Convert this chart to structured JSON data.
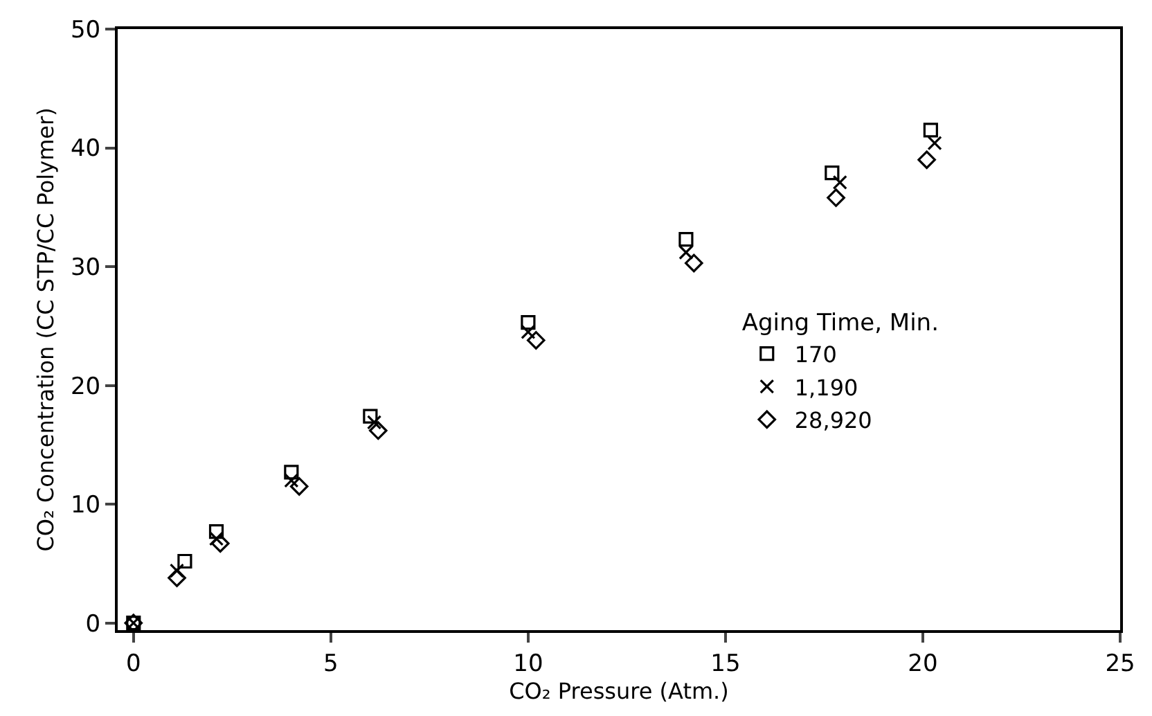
{
  "chart_data": {
    "type": "scatter",
    "xlabel": "CO₂ Pressure (Atm.)",
    "ylabel": "CO₂ Concentration (CC STP/CC Polymer)",
    "legend_title": "Aging Time, Min.",
    "legend": "right",
    "xlim": [
      -0.4,
      25
    ],
    "ylim": [
      -0.6,
      50
    ],
    "xticks": [
      0,
      5,
      10,
      15,
      20,
      25
    ],
    "yticks": [
      0,
      10,
      20,
      30,
      40,
      50
    ],
    "series": [
      {
        "name": "170",
        "color": "#000000",
        "marker": "square",
        "x": [
          0,
          1.3,
          2.1,
          4.0,
          6.0,
          10.0,
          14.0,
          17.7,
          20.2
        ],
        "values": [
          0,
          5.2,
          7.7,
          12.7,
          17.4,
          25.3,
          32.3,
          37.9,
          41.5
        ]
      },
      {
        "name": "1,190",
        "color": "#000000",
        "marker": "cross",
        "x": [
          0,
          1.1,
          2.1,
          4.0,
          6.1,
          10.0,
          14.0,
          17.9,
          20.3
        ],
        "values": [
          0,
          4.4,
          7.1,
          12.0,
          16.9,
          24.5,
          31.2,
          37.1,
          40.4
        ]
      },
      {
        "name": "28,920",
        "color": "#000000",
        "marker": "diamond",
        "x": [
          0,
          1.1,
          2.2,
          4.2,
          6.2,
          10.2,
          14.2,
          17.8,
          20.1
        ],
        "values": [
          0,
          3.8,
          6.7,
          11.5,
          16.2,
          23.8,
          30.3,
          35.8,
          39.0
        ]
      }
    ]
  }
}
